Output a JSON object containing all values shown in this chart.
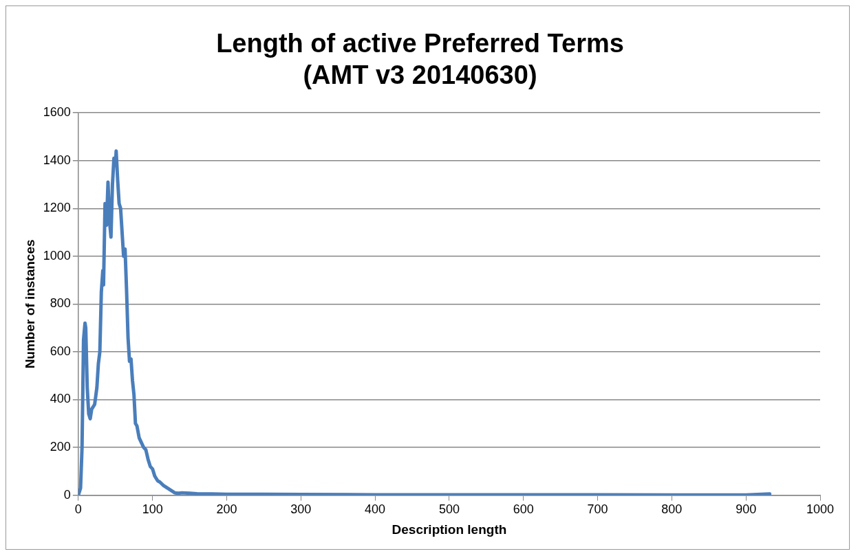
{
  "chart_data": {
    "type": "line",
    "title": [
      "Length of active Preferred Terms",
      "(AMT v3 20140630)"
    ],
    "xlabel": "Description length",
    "ylabel": "Number of instances",
    "xlim": [
      0,
      1000
    ],
    "xticks": [
      0,
      100,
      200,
      300,
      400,
      500,
      600,
      700,
      800,
      900,
      1000
    ],
    "ylim": [
      0,
      1600
    ],
    "yticks": [
      0,
      200,
      400,
      600,
      800,
      1000,
      1200,
      1400,
      1600
    ],
    "grid": "y",
    "legend": false,
    "marker": "none",
    "line_style": "solid",
    "series": [
      {
        "color": "#4a7ebb",
        "x": [
          0,
          3,
          5,
          7,
          9,
          10,
          12,
          14,
          16,
          18,
          22,
          25,
          27,
          29,
          31,
          33,
          34,
          36,
          38,
          40,
          42,
          44,
          46,
          48,
          50,
          51,
          53,
          55,
          57,
          59,
          61,
          63,
          65,
          67,
          69,
          71,
          73,
          75,
          77,
          79,
          82,
          85,
          88,
          91,
          94,
          97,
          100,
          103,
          107,
          110,
          115,
          120,
          125,
          130,
          135,
          140,
          150,
          160,
          180,
          200,
          250,
          300,
          400,
          500,
          600,
          700,
          800,
          900,
          932
        ],
        "values": [
          0,
          30,
          200,
          650,
          720,
          700,
          450,
          340,
          320,
          360,
          380,
          450,
          550,
          600,
          850,
          940,
          880,
          1220,
          1130,
          1310,
          1150,
          1080,
          1300,
          1410,
          1380,
          1440,
          1320,
          1220,
          1200,
          1100,
          1000,
          1030,
          860,
          660,
          560,
          570,
          480,
          420,
          300,
          290,
          240,
          220,
          200,
          190,
          150,
          120,
          110,
          80,
          60,
          55,
          40,
          30,
          20,
          10,
          8,
          10,
          8,
          6,
          5,
          4,
          4,
          3,
          2,
          2,
          2,
          2,
          1,
          1,
          5
        ]
      }
    ]
  }
}
